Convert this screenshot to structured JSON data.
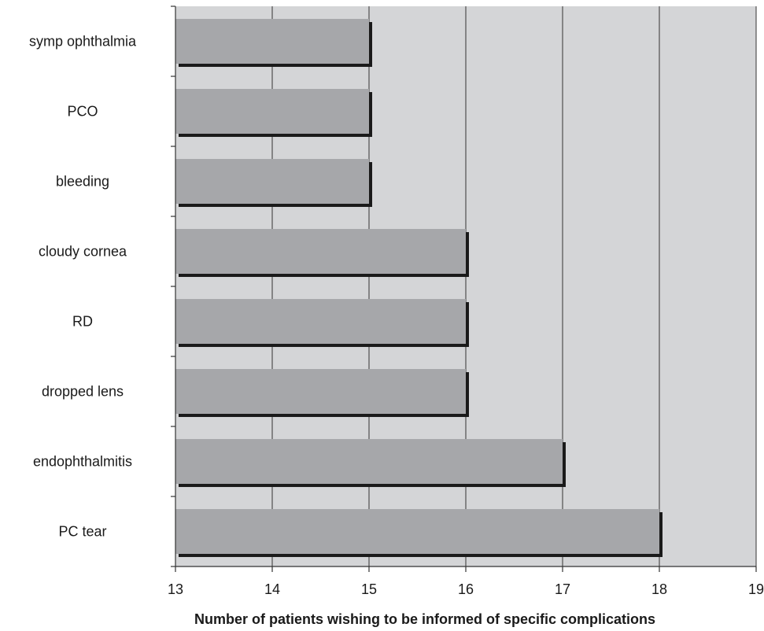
{
  "chart_data": {
    "type": "bar",
    "orientation": "horizontal",
    "categories": [
      "symp ophthalmia",
      "PCO",
      "bleeding",
      "cloudy cornea",
      "RD",
      "dropped lens",
      "endophthalmitis",
      "PC tear"
    ],
    "values": [
      15,
      15,
      15,
      16,
      16,
      16,
      17,
      18
    ],
    "xlabel": "Number of patients wishing to be informed of specific complications",
    "ylabel": "",
    "xlim": [
      13,
      19
    ],
    "xticks": [
      13,
      14,
      15,
      16,
      17,
      18,
      19
    ],
    "grid": "vertical",
    "legend": "none",
    "colors": {
      "plot_background": "#d4d5d7",
      "bar_fill": "#a6a7aa",
      "bar_shadow": "#1a1a1a",
      "gridline": "#333333",
      "axis": "#333333"
    }
  }
}
